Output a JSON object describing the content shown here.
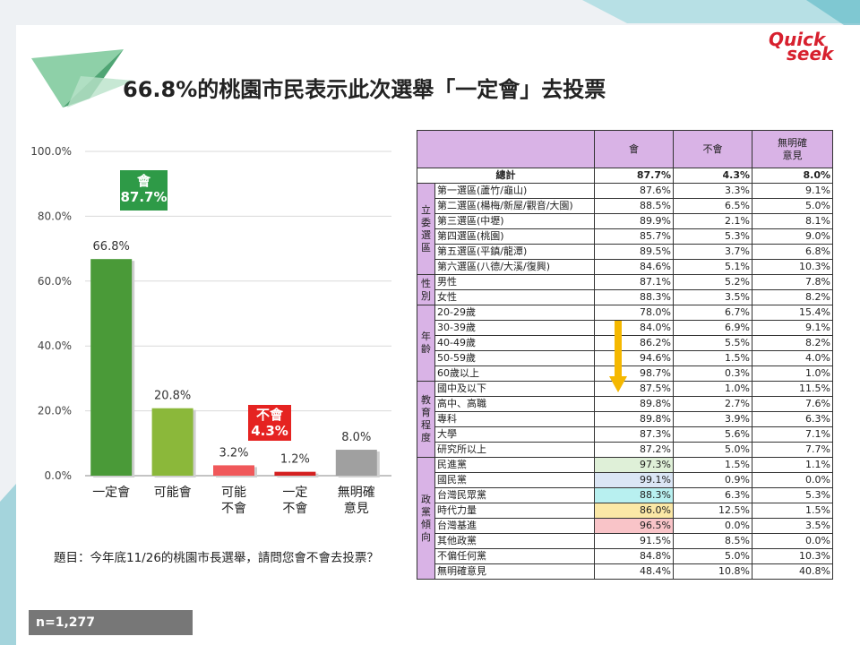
{
  "title": "66.8%的桃園市民表示此次選舉「一定會」去投票",
  "logo": {
    "line1": "Quick",
    "line2": "seek"
  },
  "question": "題目：今年底11/26的桃園市長選舉，請問您會不會去投票？",
  "sample": "n=1,277",
  "callouts": {
    "yes": {
      "label": "會",
      "value": "87.7%",
      "color": "#2e9a47"
    },
    "no": {
      "label": "不會",
      "value": "4.3%",
      "color": "#e52321"
    }
  },
  "chart_data": {
    "type": "bar",
    "categories": [
      "一定會",
      "可能會",
      "可能\n不會",
      "一定\n不會",
      "無明確\n意見"
    ],
    "values": [
      66.8,
      20.8,
      3.2,
      1.2,
      8.0
    ],
    "value_labels": [
      "66.8%",
      "20.8%",
      "3.2%",
      "1.2%",
      "8.0%"
    ],
    "colors": [
      "#4a9a38",
      "#8bb83a",
      "#f0585a",
      "#d42020",
      "#a0a0a0"
    ],
    "ylim": [
      0,
      100
    ],
    "yticks": [
      "0.0%",
      "20.0%",
      "40.0%",
      "60.0%",
      "80.0%",
      "100.0%"
    ],
    "grid": true,
    "title": "",
    "xlabel": "",
    "ylabel": ""
  },
  "table": {
    "headers": [
      "",
      "會",
      "不會",
      "無明確\n意見"
    ],
    "total": {
      "label": "總計",
      "values": [
        "87.7%",
        "4.3%",
        "8.0%"
      ]
    },
    "groups": [
      {
        "name": "立委選區",
        "rows": [
          {
            "label": "第一選區(蘆竹/龜山)",
            "values": [
              "87.6%",
              "3.3%",
              "9.1%"
            ]
          },
          {
            "label": "第二選區(楊梅/新屋/觀音/大園)",
            "values": [
              "88.5%",
              "6.5%",
              "5.0%"
            ]
          },
          {
            "label": "第三選區(中壢)",
            "values": [
              "89.9%",
              "2.1%",
              "8.1%"
            ]
          },
          {
            "label": "第四選區(桃園)",
            "values": [
              "85.7%",
              "5.3%",
              "9.0%"
            ]
          },
          {
            "label": "第五選區(平鎮/龍潭)",
            "values": [
              "89.5%",
              "3.7%",
              "6.8%"
            ]
          },
          {
            "label": "第六選區(八德/大溪/復興)",
            "values": [
              "84.6%",
              "5.1%",
              "10.3%"
            ]
          }
        ]
      },
      {
        "name": "性別",
        "rows": [
          {
            "label": "男性",
            "values": [
              "87.1%",
              "5.2%",
              "7.8%"
            ]
          },
          {
            "label": "女性",
            "values": [
              "88.3%",
              "3.5%",
              "8.2%"
            ]
          }
        ]
      },
      {
        "name": "年齡",
        "rows": [
          {
            "label": "20-29歲",
            "values": [
              "78.0%",
              "6.7%",
              "15.4%"
            ]
          },
          {
            "label": "30-39歲",
            "values": [
              "84.0%",
              "6.9%",
              "9.1%"
            ]
          },
          {
            "label": "40-49歲",
            "values": [
              "86.2%",
              "5.5%",
              "8.2%"
            ]
          },
          {
            "label": "50-59歲",
            "values": [
              "94.6%",
              "1.5%",
              "4.0%"
            ]
          },
          {
            "label": "60歲以上",
            "values": [
              "98.7%",
              "0.3%",
              "1.0%"
            ]
          }
        ]
      },
      {
        "name": "教育程度",
        "rows": [
          {
            "label": "國中及以下",
            "values": [
              "87.5%",
              "1.0%",
              "11.5%"
            ]
          },
          {
            "label": "高中、高職",
            "values": [
              "89.8%",
              "2.7%",
              "7.6%"
            ]
          },
          {
            "label": "專科",
            "values": [
              "89.8%",
              "3.9%",
              "6.3%"
            ]
          },
          {
            "label": "大學",
            "values": [
              "87.3%",
              "5.6%",
              "7.1%"
            ]
          },
          {
            "label": "研究所以上",
            "values": [
              "87.2%",
              "5.0%",
              "7.7%"
            ]
          }
        ]
      },
      {
        "name": "政黨傾向",
        "rows": [
          {
            "label": "民進黨",
            "values": [
              "97.3%",
              "1.5%",
              "1.1%"
            ],
            "highlight": "#dff0d8"
          },
          {
            "label": "國民黨",
            "values": [
              "99.1%",
              "0.9%",
              "0.0%"
            ],
            "highlight": "#dbe6f5"
          },
          {
            "label": "台灣民眾黨",
            "values": [
              "88.3%",
              "6.3%",
              "5.3%"
            ],
            "highlight": "#b8f0f0"
          },
          {
            "label": "時代力量",
            "values": [
              "86.0%",
              "12.5%",
              "1.5%"
            ],
            "highlight": "#fbe8a6"
          },
          {
            "label": "台灣基進",
            "values": [
              "96.5%",
              "0.0%",
              "3.5%"
            ],
            "highlight": "#f9c4c8"
          },
          {
            "label": "其他政黨",
            "values": [
              "91.5%",
              "8.5%",
              "0.0%"
            ]
          },
          {
            "label": "不偏任何黨",
            "values": [
              "84.8%",
              "5.0%",
              "10.3%"
            ]
          },
          {
            "label": "無明確意見",
            "values": [
              "48.4%",
              "10.8%",
              "40.8%"
            ]
          }
        ]
      }
    ]
  }
}
